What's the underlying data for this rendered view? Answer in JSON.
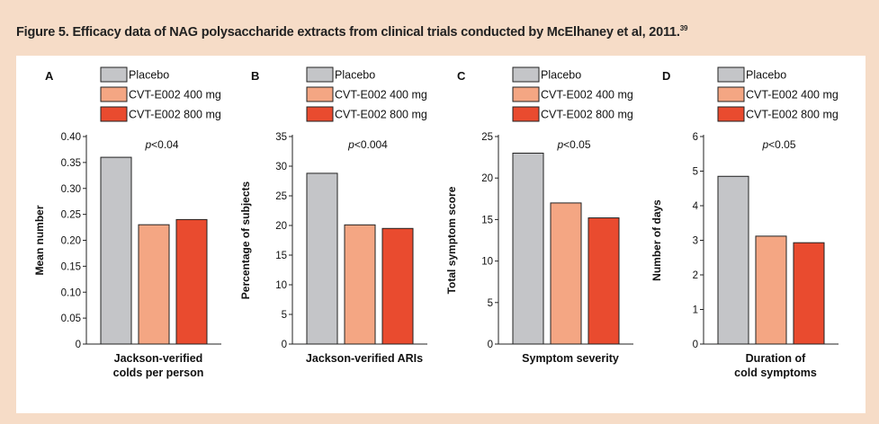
{
  "figure": {
    "title": "Figure 5. Efficacy data of NAG polysaccharide extracts from clinical trials conducted by McElhaney et al, 2011.",
    "title_ref": "39"
  },
  "legend": [
    {
      "label": "Placebo",
      "color": "#c4c5c8"
    },
    {
      "label": "CVT-E002 400 mg",
      "color": "#f4a683"
    },
    {
      "label": "CVT-E002 800 mg",
      "color": "#e94b2f"
    }
  ],
  "chart_data": [
    {
      "type": "bar",
      "panel": "A",
      "ylabel": "Mean number",
      "xlabel": [
        "Jackson-verified",
        "colds per person"
      ],
      "annotation": "p<0.04",
      "ylim": [
        0,
        0.4
      ],
      "ticks": [
        "0",
        "0.05",
        "0.10",
        "0.15",
        "0.20",
        "0.25",
        "0.30",
        "0.35",
        "0.40"
      ],
      "categories": [
        "Placebo",
        "CVT-E002 400 mg",
        "CVT-E002 800 mg"
      ],
      "values": [
        0.36,
        0.23,
        0.24
      ]
    },
    {
      "type": "bar",
      "panel": "B",
      "ylabel": "Percentage of subjects",
      "xlabel": [
        "Jackson-verified ARIs"
      ],
      "annotation": "p<0.004",
      "ylim": [
        0,
        35
      ],
      "ticks": [
        "0",
        "5",
        "10",
        "15",
        "20",
        "25",
        "30",
        "35"
      ],
      "categories": [
        "Placebo",
        "CVT-E002 400 mg",
        "CVT-E002 800 mg"
      ],
      "values": [
        28.8,
        20.1,
        19.5
      ]
    },
    {
      "type": "bar",
      "panel": "C",
      "ylabel": "Total symptom score",
      "xlabel": [
        "Symptom severity"
      ],
      "annotation": "p<0.05",
      "ylim": [
        0,
        25
      ],
      "ticks": [
        "0",
        "5",
        "10",
        "15",
        "20",
        "25"
      ],
      "categories": [
        "Placebo",
        "CVT-E002 400 mg",
        "CVT-E002 800 mg"
      ],
      "values": [
        23.0,
        17.0,
        15.2
      ]
    },
    {
      "type": "bar",
      "panel": "D",
      "ylabel": "Number of days",
      "xlabel": [
        "Duration of",
        "cold symptoms"
      ],
      "annotation": "p<0.05",
      "ylim": [
        0,
        6
      ],
      "ticks": [
        "0",
        "1",
        "2",
        "3",
        "4",
        "5",
        "6"
      ],
      "categories": [
        "Placebo",
        "CVT-E002 400 mg",
        "CVT-E002 800 mg"
      ],
      "values": [
        4.85,
        3.12,
        2.93
      ]
    }
  ]
}
